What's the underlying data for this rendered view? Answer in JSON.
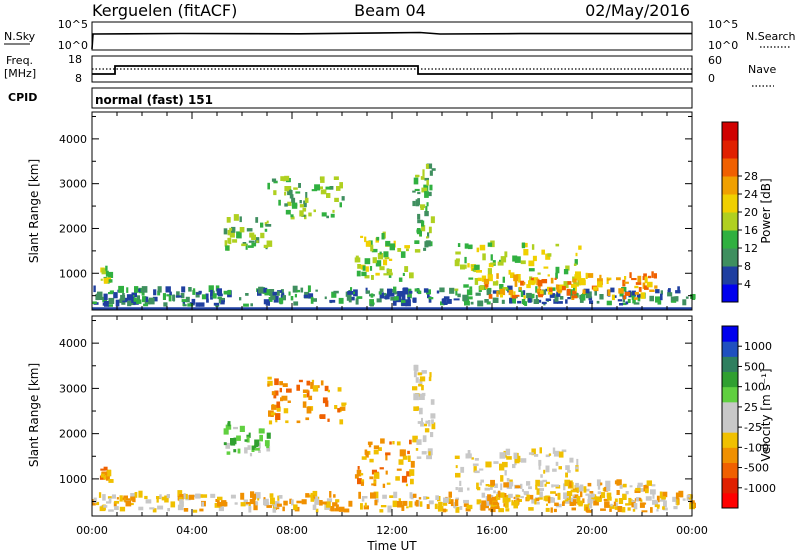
{
  "header": {
    "station": "Kerguelen (fitACF)",
    "beam": "Beam 04",
    "date": "02/May/2016"
  },
  "status_panels": {
    "nsky_label": "N.Sky",
    "nsky_ticks": [
      "10^5",
      "10^0"
    ],
    "nsearch_label": "N.Search",
    "freq_label": "Freq.",
    "freq_unit": "[MHz]",
    "freq_ticks": [
      "18",
      "8"
    ],
    "nave_label": "Nave",
    "nave_ticks": [
      "60",
      "0"
    ],
    "cpid_label": "CPID",
    "cpid_value": "normal (fast) 151"
  },
  "colorbars": {
    "power": {
      "label": "Power [dB]",
      "ticks": [
        "4",
        "8",
        "12",
        "16",
        "20",
        "24",
        "28"
      ],
      "colors": [
        "#0000ee",
        "#1f3fa0",
        "#3f8f5f",
        "#30b040",
        "#b0d020",
        "#f0d000",
        "#f0a000",
        "#f06000",
        "#e02000",
        "#d00000"
      ]
    },
    "velocity": {
      "label": "Velocity [m s⁻¹]",
      "ticks": [
        "1000",
        "500",
        "100",
        "25",
        "-25",
        "-100",
        "-500",
        "-1000"
      ],
      "colors": [
        "#0000ee",
        "#2050c0",
        "#2f7f5f",
        "#30a030",
        "#60d040",
        "#c8c8c8",
        "#c8c8c8",
        "#f0c000",
        "#f09000",
        "#f06000",
        "#e02000",
        "#ff0000"
      ]
    }
  },
  "axes": {
    "ylabel": "Slant Range [km]",
    "xlabel": "Time UT",
    "x_ticks": [
      "00:00",
      "04:00",
      "08:00",
      "12:00",
      "16:00",
      "20:00",
      "00:00"
    ],
    "y_ticks": [
      "1000",
      "2000",
      "3000",
      "4000"
    ]
  },
  "chart_data": [
    {
      "type": "heatmap",
      "title": "",
      "quantity": "Power",
      "xlabel": "Time UT",
      "ylabel": "Slant Range [km]",
      "xlim": [
        0,
        24
      ],
      "ylim": [
        180,
        4600
      ],
      "colorbar_label": "Power [dB]",
      "colorbar_ticks": [
        4,
        8,
        12,
        16,
        20,
        24,
        28
      ],
      "echo_regions": [
        {
          "t0": 0.3,
          "t1": 0.7,
          "r0": 700,
          "r1": 1100,
          "level": "16"
        },
        {
          "t0": 0.0,
          "t1": 24.0,
          "r0": 250,
          "r1": 600,
          "level": "8"
        },
        {
          "t0": 5.2,
          "t1": 7.0,
          "r0": 1500,
          "r1": 2200,
          "level": "12"
        },
        {
          "t0": 7.0,
          "t1": 10.0,
          "r0": 2200,
          "r1": 3100,
          "level": "12"
        },
        {
          "t0": 10.5,
          "t1": 12.8,
          "r0": 800,
          "r1": 1800,
          "level": "16"
        },
        {
          "t0": 12.8,
          "t1": 13.6,
          "r0": 1400,
          "r1": 3400,
          "level": "12"
        },
        {
          "t0": 14.5,
          "t1": 19.5,
          "r0": 600,
          "r1": 1600,
          "level": "16"
        },
        {
          "t0": 15.5,
          "t1": 22.5,
          "r0": 400,
          "r1": 900,
          "level": "24"
        }
      ]
    },
    {
      "type": "heatmap",
      "title": "",
      "quantity": "Velocity",
      "xlabel": "Time UT",
      "ylabel": "Slant Range [km]",
      "xlim": [
        0,
        24
      ],
      "ylim": [
        180,
        4600
      ],
      "colorbar_label": "Velocity [m s⁻¹]",
      "colorbar_ticks": [
        1000,
        500,
        100,
        25,
        -25,
        -100,
        -500,
        -1000
      ],
      "echo_regions": [
        {
          "t0": 0.3,
          "t1": 0.7,
          "r0": 800,
          "r1": 1200,
          "level": "-500"
        },
        {
          "t0": 0.0,
          "t1": 24.0,
          "r0": 250,
          "r1": 600,
          "level": "-100"
        },
        {
          "t0": 5.2,
          "t1": 7.0,
          "r0": 1500,
          "r1": 2200,
          "level": "100"
        },
        {
          "t0": 7.0,
          "t1": 10.0,
          "r0": 2200,
          "r1": 3200,
          "level": "-500"
        },
        {
          "t0": 10.5,
          "t1": 12.8,
          "r0": 800,
          "r1": 1800,
          "level": "-500"
        },
        {
          "t0": 12.8,
          "t1": 13.6,
          "r0": 1400,
          "r1": 3400,
          "level": "-25"
        },
        {
          "t0": 14.5,
          "t1": 19.5,
          "r0": 700,
          "r1": 1600,
          "level": "-25"
        },
        {
          "t0": 15.5,
          "t1": 22.5,
          "r0": 400,
          "r1": 900,
          "level": "-100"
        }
      ]
    }
  ]
}
